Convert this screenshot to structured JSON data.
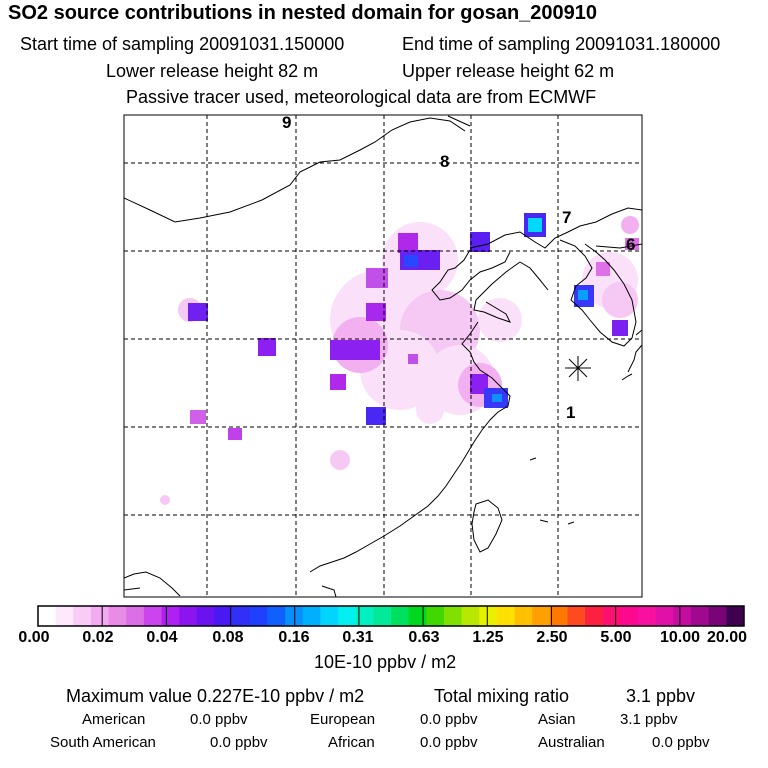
{
  "header": {
    "title": "SO2 source contributions in nested domain for gosan_200910",
    "start_label": "Start time of sampling 20091031.150000",
    "end_label": "End time of sampling 20091031.180000",
    "lower_label": "Lower release height   82 m",
    "upper_label": "Upper release height   62 m",
    "note": "Passive tracer used, meteorological data are from ECMWF"
  },
  "map": {
    "trajectory_labels": [
      "9",
      "8",
      "7",
      "6",
      "1"
    ]
  },
  "colorbar": {
    "ticks": [
      "0.00",
      "0.02",
      "0.04",
      "0.08",
      "0.16",
      "0.31",
      "0.63",
      "1.25",
      "2.50",
      "5.00",
      "10.00",
      "20.00"
    ],
    "colors": [
      "#ffffff",
      "#fde8fc",
      "#f9ccf7",
      "#f2aaf0",
      "#e98ce8",
      "#dc6ee6",
      "#cc44ee",
      "#b020f2",
      "#8c14f0",
      "#6a12f0",
      "#4a18f4",
      "#3030f8",
      "#2040ff",
      "#1060ff",
      "#0890ff",
      "#00b0ff",
      "#00d4ff",
      "#00f0f0",
      "#00f0c0",
      "#00ea9a",
      "#00e060",
      "#00d820",
      "#40d800",
      "#80e000",
      "#b8e800",
      "#e8f000",
      "#ffe000",
      "#ffc000",
      "#ffa000",
      "#ff7800",
      "#ff4a20",
      "#ff2040",
      "#ff1070",
      "#ff0890",
      "#f810a0",
      "#e010a8",
      "#c40ca0",
      "#a00890",
      "#780478",
      "#400050"
    ],
    "unit": "10E-10 ppbv / m2"
  },
  "stats": {
    "max_label": "Maximum value  0.227E-10 ppbv / m2",
    "total_label": "Total mixing ratio",
    "total_value": "3.1 ppbv",
    "american_label": "American",
    "american_value": "0.0 ppbv",
    "european_label": "European",
    "european_value": "0.0 ppbv",
    "asian_label": "Asian",
    "asian_value": "3.1 ppbv",
    "south_american_label": "South American",
    "south_american_value": "0.0 ppbv",
    "african_label": "African",
    "african_value": "0.0 ppbv",
    "australian_label": "Australian",
    "australian_value": "0.0 ppbv"
  }
}
